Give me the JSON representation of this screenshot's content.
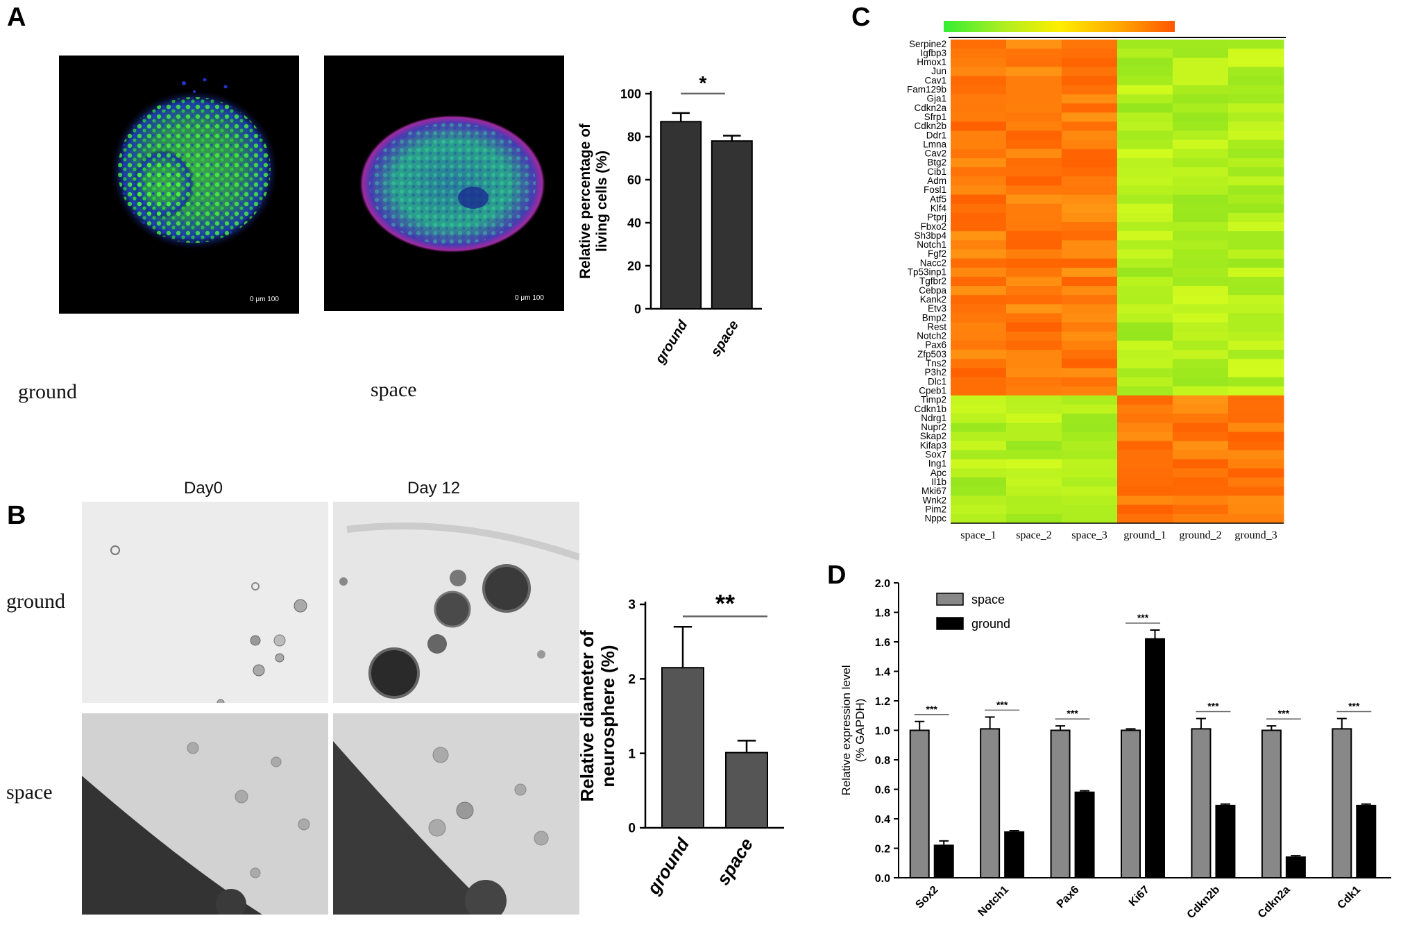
{
  "panels": {
    "a": {
      "letter": "A",
      "ground_label": "ground",
      "space_label": "space",
      "scale_bar_text": "0    μm  100"
    },
    "b": {
      "letter": "B",
      "day0_label": "Day0",
      "day12_label": "Day 12",
      "ground_label": "ground",
      "space_label": "space"
    },
    "c": {
      "letter": "C"
    },
    "d": {
      "letter": "D"
    }
  },
  "chart_data": [
    {
      "id": "a",
      "type": "bar",
      "categories": [
        "ground",
        "space"
      ],
      "values": [
        87,
        78
      ],
      "errors": [
        4,
        2.5
      ],
      "ylabel": "Relative percentage of\nliving cells (%)",
      "ylim": [
        0,
        100
      ],
      "yticks": [
        0,
        20,
        40,
        60,
        80,
        100
      ],
      "significance": "*",
      "bar_color": "#333333"
    },
    {
      "id": "b",
      "type": "bar",
      "categories": [
        "ground",
        "space"
      ],
      "values": [
        2.15,
        1.01
      ],
      "errors": [
        0.55,
        0.16
      ],
      "ylabel": "Relative diameter of\nneurosphere (%)",
      "ylim": [
        0,
        3
      ],
      "yticks": [
        0,
        1,
        2,
        3
      ],
      "significance": "**",
      "bar_color": "#555555"
    },
    {
      "id": "c",
      "type": "heatmap",
      "columns": [
        "space_1",
        "space_2",
        "space_3",
        "ground_1",
        "ground_2",
        "ground_3"
      ],
      "rows": [
        "Serpine2",
        "Igfbp3",
        "Hmox1",
        "Jun",
        "Cav1",
        "Fam129b",
        "Gja1",
        "Cdkn2a",
        "Sfrp1",
        "Cdkn2b",
        "Ddr1",
        "Lmna",
        "Cav2",
        "Btg2",
        "Cib1",
        "Adm",
        "Fosl1",
        "Atf5",
        "Klf4",
        "Ptprj",
        "Fbxo2",
        "Sh3bp4",
        "Notch1",
        "Fgf2",
        "Nacc2",
        "Tp53inp1",
        "Tgfbr2",
        "Cebpa",
        "Kank2",
        "Etv3",
        "Bmp2",
        "Rest",
        "Notch2",
        "Pax6",
        "Zfp503",
        "Tns2",
        "P3h2",
        "Dlc1",
        "Cpeb1",
        "Timp2",
        "Cdkn1b",
        "Ndrg1",
        "Nupr2",
        "Skap2",
        "Kifap3",
        "Sox7",
        "Ing1",
        "Apc",
        "Il1b",
        "Mki67",
        "Wnk2",
        "Pim2",
        "Nppc"
      ],
      "up_in_space_count": 39,
      "scale_colors": [
        "#33ee33",
        "#aaee22",
        "#ffee00",
        "#ffaa00",
        "#ff5500"
      ]
    },
    {
      "id": "d",
      "type": "bar",
      "categories": [
        "Sox2",
        "Notch1",
        "Pax6",
        "Ki67",
        "Cdkn2b",
        "Cdkn2a",
        "Cdk1"
      ],
      "series": [
        {
          "name": "space",
          "values": [
            1.0,
            1.01,
            1.0,
            1.0,
            1.01,
            1.0,
            1.01
          ],
          "errors": [
            0.06,
            0.08,
            0.03,
            0.01,
            0.07,
            0.03,
            0.07
          ],
          "color": "#888888"
        },
        {
          "name": "ground",
          "values": [
            0.22,
            0.31,
            0.58,
            1.62,
            0.49,
            0.14,
            0.49
          ],
          "errors": [
            0.03,
            0.01,
            0.01,
            0.06,
            0.01,
            0.01,
            0.01
          ],
          "color": "#000000"
        }
      ],
      "ylabel": "Relative expression level\n(% GAPDH)",
      "ylim": [
        0,
        2.0
      ],
      "yticks": [
        "0.0",
        "0.2",
        "0.4",
        "0.6",
        "0.8",
        "1.0",
        "1.2",
        "1.4",
        "1.6",
        "1.8",
        "2.0"
      ],
      "significance": "***"
    }
  ]
}
